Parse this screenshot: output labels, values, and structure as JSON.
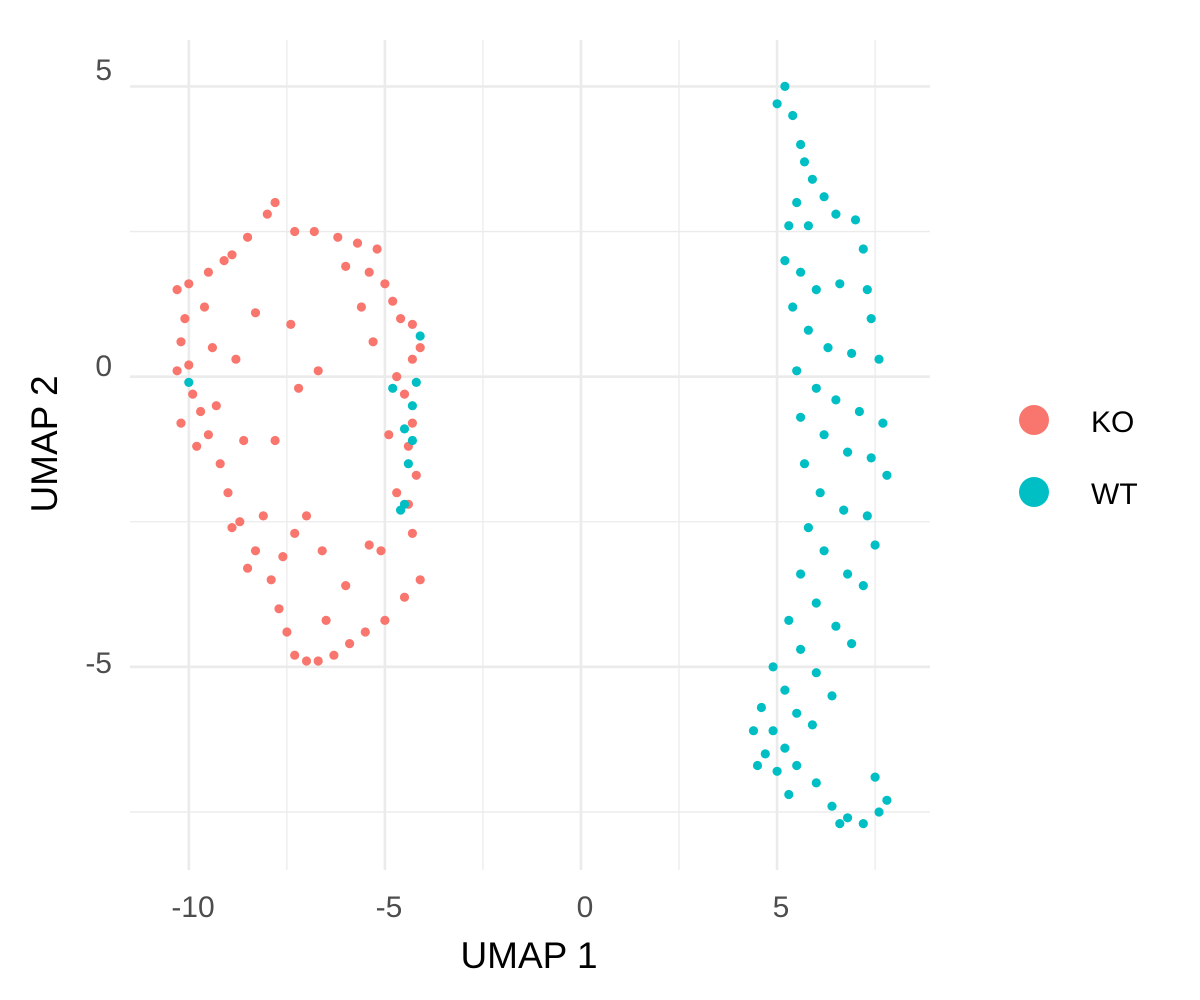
{
  "chart_data": {
    "type": "scatter",
    "title": "",
    "xlabel": "UMAP 1",
    "ylabel": "UMAP 2",
    "xlim": [
      -11.5,
      8.9
    ],
    "ylim": [
      -8.5,
      5.8
    ],
    "x_ticks": [
      -10,
      -5,
      0,
      5
    ],
    "y_ticks": [
      -5,
      0,
      5
    ],
    "x_tick_labels": [
      "-10",
      "-5",
      "0",
      "5"
    ],
    "y_tick_labels": [
      "-5",
      "0",
      "5"
    ],
    "grid": true,
    "legend_position": "right",
    "series": [
      {
        "name": "KO",
        "color": "#F8766D",
        "points": [
          [
            -10.3,
            1.5
          ],
          [
            -10.1,
            1.0
          ],
          [
            -10.2,
            0.6
          ],
          [
            -10.0,
            0.2
          ],
          [
            -9.9,
            -0.3
          ],
          [
            -10.2,
            -0.8
          ],
          [
            -9.8,
            -1.2
          ],
          [
            -9.5,
            1.8
          ],
          [
            -9.6,
            1.2
          ],
          [
            -9.4,
            0.5
          ],
          [
            -9.3,
            -0.5
          ],
          [
            -9.5,
            -1.0
          ],
          [
            -9.1,
            2.0
          ],
          [
            -9.2,
            -1.5
          ],
          [
            -8.9,
            2.1
          ],
          [
            -8.5,
            2.4
          ],
          [
            -8.0,
            2.8
          ],
          [
            -7.8,
            3.0
          ],
          [
            -7.3,
            2.5
          ],
          [
            -6.8,
            2.5
          ],
          [
            -6.2,
            2.4
          ],
          [
            -5.7,
            2.3
          ],
          [
            -5.2,
            2.2
          ],
          [
            -5.4,
            1.8
          ],
          [
            -5.0,
            1.6
          ],
          [
            -4.8,
            1.3
          ],
          [
            -4.6,
            1.0
          ],
          [
            -4.3,
            0.9
          ],
          [
            -4.1,
            0.5
          ],
          [
            -4.3,
            0.3
          ],
          [
            -4.7,
            0.0
          ],
          [
            -4.5,
            -0.3
          ],
          [
            -4.3,
            -0.8
          ],
          [
            -4.4,
            -1.2
          ],
          [
            -4.2,
            -1.7
          ],
          [
            -4.4,
            -2.2
          ],
          [
            -4.3,
            -2.7
          ],
          [
            -4.1,
            -3.5
          ],
          [
            -4.5,
            -3.8
          ],
          [
            -5.0,
            -4.2
          ],
          [
            -5.5,
            -4.4
          ],
          [
            -5.9,
            -4.6
          ],
          [
            -6.3,
            -4.8
          ],
          [
            -6.7,
            -4.9
          ],
          [
            -7.0,
            -4.9
          ],
          [
            -7.3,
            -4.8
          ],
          [
            -7.5,
            -4.4
          ],
          [
            -7.7,
            -4.0
          ],
          [
            -7.9,
            -3.5
          ],
          [
            -8.3,
            -3.0
          ],
          [
            -8.7,
            -2.5
          ],
          [
            -9.0,
            -2.0
          ],
          [
            -8.1,
            -2.4
          ],
          [
            -7.3,
            -2.7
          ],
          [
            -6.6,
            -3.0
          ],
          [
            -6.0,
            -3.6
          ],
          [
            -6.5,
            -4.2
          ],
          [
            -7.6,
            -3.1
          ],
          [
            -8.5,
            -3.3
          ],
          [
            -8.9,
            -2.6
          ],
          [
            -7.8,
            -1.1
          ],
          [
            -7.2,
            -0.2
          ],
          [
            -6.7,
            0.1
          ],
          [
            -7.4,
            0.9
          ],
          [
            -8.6,
            -1.1
          ],
          [
            -7.0,
            -2.4
          ],
          [
            -5.1,
            -3.0
          ],
          [
            -5.4,
            -2.9
          ],
          [
            -4.7,
            -2.0
          ],
          [
            -4.9,
            -1.0
          ],
          [
            -5.3,
            0.6
          ],
          [
            -5.6,
            1.2
          ],
          [
            -6.0,
            1.9
          ],
          [
            -8.3,
            1.1
          ],
          [
            -8.8,
            0.3
          ],
          [
            -10.0,
            1.6
          ],
          [
            -9.7,
            -0.6
          ],
          [
            -10.3,
            0.1
          ]
        ]
      },
      {
        "name": "WT",
        "color": "#00BFC4",
        "points": [
          [
            5.2,
            5.0
          ],
          [
            5.0,
            4.7
          ],
          [
            5.4,
            4.5
          ],
          [
            5.6,
            4.0
          ],
          [
            5.7,
            3.7
          ],
          [
            5.9,
            3.4
          ],
          [
            6.2,
            3.1
          ],
          [
            5.5,
            3.0
          ],
          [
            5.3,
            2.6
          ],
          [
            5.8,
            2.6
          ],
          [
            6.5,
            2.8
          ],
          [
            7.0,
            2.7
          ],
          [
            7.2,
            2.2
          ],
          [
            5.2,
            2.0
          ],
          [
            5.6,
            1.8
          ],
          [
            6.0,
            1.5
          ],
          [
            6.6,
            1.6
          ],
          [
            7.3,
            1.5
          ],
          [
            7.4,
            1.0
          ],
          [
            5.4,
            1.2
          ],
          [
            5.8,
            0.8
          ],
          [
            6.3,
            0.5
          ],
          [
            6.9,
            0.4
          ],
          [
            7.6,
            0.3
          ],
          [
            5.5,
            0.1
          ],
          [
            6.0,
            -0.2
          ],
          [
            6.5,
            -0.4
          ],
          [
            7.1,
            -0.6
          ],
          [
            7.7,
            -0.8
          ],
          [
            5.6,
            -0.7
          ],
          [
            6.2,
            -1.0
          ],
          [
            6.8,
            -1.3
          ],
          [
            7.4,
            -1.4
          ],
          [
            7.8,
            -1.7
          ],
          [
            5.7,
            -1.5
          ],
          [
            6.1,
            -2.0
          ],
          [
            6.7,
            -2.3
          ],
          [
            7.3,
            -2.4
          ],
          [
            7.5,
            -2.9
          ],
          [
            5.8,
            -2.6
          ],
          [
            6.2,
            -3.0
          ],
          [
            6.8,
            -3.4
          ],
          [
            7.2,
            -3.6
          ],
          [
            5.6,
            -3.4
          ],
          [
            6.0,
            -3.9
          ],
          [
            6.5,
            -4.3
          ],
          [
            6.9,
            -4.6
          ],
          [
            5.3,
            -4.2
          ],
          [
            5.6,
            -4.7
          ],
          [
            6.0,
            -5.1
          ],
          [
            6.4,
            -5.5
          ],
          [
            4.9,
            -5.0
          ],
          [
            5.2,
            -5.4
          ],
          [
            5.5,
            -5.8
          ],
          [
            5.9,
            -6.0
          ],
          [
            4.6,
            -5.7
          ],
          [
            4.9,
            -6.1
          ],
          [
            5.2,
            -6.4
          ],
          [
            4.7,
            -6.5
          ],
          [
            5.0,
            -6.8
          ],
          [
            5.5,
            -6.7
          ],
          [
            6.0,
            -7.0
          ],
          [
            6.4,
            -7.4
          ],
          [
            6.8,
            -7.6
          ],
          [
            7.2,
            -7.7
          ],
          [
            7.6,
            -7.5
          ],
          [
            7.8,
            -7.3
          ],
          [
            7.5,
            -6.9
          ],
          [
            6.6,
            -7.7
          ],
          [
            4.4,
            -6.1
          ],
          [
            4.5,
            -6.7
          ],
          [
            5.3,
            -7.2
          ],
          [
            -10.0,
            -0.1
          ],
          [
            -4.8,
            -0.2
          ],
          [
            -4.1,
            0.7
          ],
          [
            -4.2,
            -0.1
          ],
          [
            -4.5,
            -0.9
          ],
          [
            -4.3,
            -1.1
          ],
          [
            -4.4,
            -1.5
          ],
          [
            -4.6,
            -2.3
          ],
          [
            -4.5,
            -2.2
          ],
          [
            -4.3,
            -0.5
          ]
        ]
      }
    ]
  }
}
